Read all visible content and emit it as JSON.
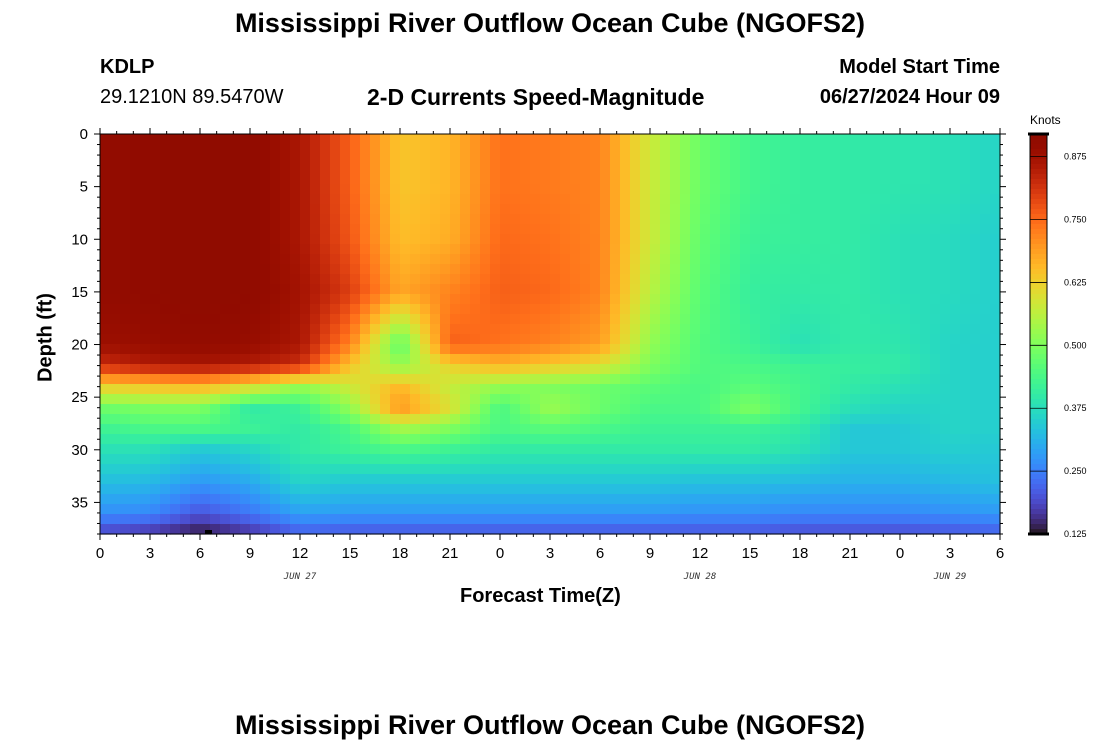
{
  "header": {
    "title": "Mississippi River Outflow Ocean Cube (NGOFS2)",
    "station": "KDLP",
    "coords": "29.1210N  89.5470W",
    "subtitle": "2-D Currents Speed-Magnitude",
    "model_start_label": "Model Start Time",
    "model_start_value": "06/27/2024 Hour 09"
  },
  "footer": {
    "title": "Mississippi River Outflow Ocean Cube (NGOFS2)"
  },
  "chart_data": {
    "type": "heatmap",
    "title": "2-D Currents Speed-Magnitude",
    "xlabel": "Forecast Time(Z)",
    "ylabel": "Depth (ft)",
    "x_range_hours": [
      0,
      54
    ],
    "ylim": [
      0,
      38
    ],
    "y_inverted": true,
    "x_tick_labels": [
      "0",
      "3",
      "6",
      "9",
      "12",
      "15",
      "18",
      "21",
      "0",
      "3",
      "6",
      "9",
      "12",
      "15",
      "18",
      "21",
      "0",
      "3",
      "6"
    ],
    "y_tick_labels": [
      "0",
      "5",
      "10",
      "15",
      "20",
      "25",
      "30",
      "35"
    ],
    "y_tick_values": [
      0,
      5,
      10,
      15,
      20,
      25,
      30,
      35
    ],
    "date_labels": [
      {
        "text": "JUN 27",
        "hour": 12
      },
      {
        "text": "JUN 28",
        "hour": 36
      },
      {
        "text": "JUN 29",
        "hour": 51
      }
    ],
    "colorbar": {
      "title": "Knots",
      "range": [
        0.125,
        0.92
      ],
      "tick_labels": [
        "0.875",
        "0.750",
        "0.625",
        "0.500",
        "0.375",
        "0.250",
        "0.125"
      ],
      "tick_values": [
        0.875,
        0.75,
        0.625,
        0.5,
        0.375,
        0.25,
        0.125
      ],
      "colormap": "turbo"
    },
    "grid_hours": [
      0,
      3,
      6,
      9,
      12,
      15,
      18,
      21,
      24,
      27,
      30,
      33,
      36,
      39,
      42,
      45,
      48,
      51,
      54
    ],
    "grid_depths": [
      0,
      5,
      10,
      15,
      20,
      22,
      24,
      26,
      28,
      30,
      33,
      36,
      38
    ],
    "values": [
      [
        0.9,
        0.91,
        0.92,
        0.91,
        0.86,
        0.76,
        0.64,
        0.66,
        0.74,
        0.73,
        0.72,
        0.58,
        0.48,
        0.43,
        0.41,
        0.4,
        0.39,
        0.38,
        0.36
      ],
      [
        0.9,
        0.91,
        0.92,
        0.91,
        0.86,
        0.76,
        0.64,
        0.66,
        0.74,
        0.73,
        0.72,
        0.58,
        0.48,
        0.43,
        0.41,
        0.4,
        0.39,
        0.38,
        0.36
      ],
      [
        0.9,
        0.91,
        0.92,
        0.91,
        0.86,
        0.77,
        0.65,
        0.67,
        0.75,
        0.74,
        0.72,
        0.58,
        0.47,
        0.42,
        0.41,
        0.4,
        0.38,
        0.37,
        0.35
      ],
      [
        0.9,
        0.91,
        0.92,
        0.91,
        0.87,
        0.8,
        0.68,
        0.72,
        0.76,
        0.75,
        0.72,
        0.56,
        0.46,
        0.41,
        0.4,
        0.4,
        0.38,
        0.37,
        0.35
      ],
      [
        0.88,
        0.89,
        0.9,
        0.89,
        0.86,
        0.72,
        0.46,
        0.76,
        0.74,
        0.72,
        0.69,
        0.52,
        0.45,
        0.42,
        0.38,
        0.4,
        0.39,
        0.36,
        0.35
      ],
      [
        0.82,
        0.85,
        0.86,
        0.85,
        0.82,
        0.64,
        0.52,
        0.62,
        0.66,
        0.63,
        0.6,
        0.5,
        0.45,
        0.44,
        0.42,
        0.41,
        0.4,
        0.36,
        0.35
      ],
      [
        0.62,
        0.64,
        0.66,
        0.6,
        0.52,
        0.58,
        0.66,
        0.57,
        0.52,
        0.5,
        0.48,
        0.46,
        0.44,
        0.46,
        0.43,
        0.4,
        0.38,
        0.36,
        0.35
      ],
      [
        0.48,
        0.5,
        0.5,
        0.4,
        0.42,
        0.52,
        0.7,
        0.6,
        0.44,
        0.53,
        0.48,
        0.44,
        0.44,
        0.5,
        0.43,
        0.38,
        0.36,
        0.36,
        0.35
      ],
      [
        0.42,
        0.44,
        0.44,
        0.42,
        0.4,
        0.44,
        0.54,
        0.5,
        0.44,
        0.46,
        0.44,
        0.42,
        0.42,
        0.42,
        0.4,
        0.34,
        0.34,
        0.36,
        0.35
      ],
      [
        0.38,
        0.38,
        0.34,
        0.36,
        0.4,
        0.42,
        0.44,
        0.42,
        0.4,
        0.4,
        0.4,
        0.4,
        0.4,
        0.4,
        0.38,
        0.34,
        0.34,
        0.35,
        0.34
      ],
      [
        0.33,
        0.32,
        0.28,
        0.3,
        0.36,
        0.34,
        0.34,
        0.34,
        0.34,
        0.34,
        0.34,
        0.34,
        0.33,
        0.33,
        0.32,
        0.31,
        0.31,
        0.32,
        0.33
      ],
      [
        0.27,
        0.26,
        0.2,
        0.24,
        0.29,
        0.28,
        0.28,
        0.28,
        0.28,
        0.28,
        0.28,
        0.28,
        0.27,
        0.27,
        0.26,
        0.26,
        0.26,
        0.27,
        0.28
      ],
      [
        0.18,
        0.16,
        0.13,
        0.16,
        0.21,
        0.2,
        0.2,
        0.2,
        0.2,
        0.2,
        0.2,
        0.2,
        0.2,
        0.2,
        0.19,
        0.19,
        0.19,
        0.2,
        0.21
      ]
    ]
  },
  "colors": {
    "axis": "#000000",
    "background": "#ffffff"
  }
}
